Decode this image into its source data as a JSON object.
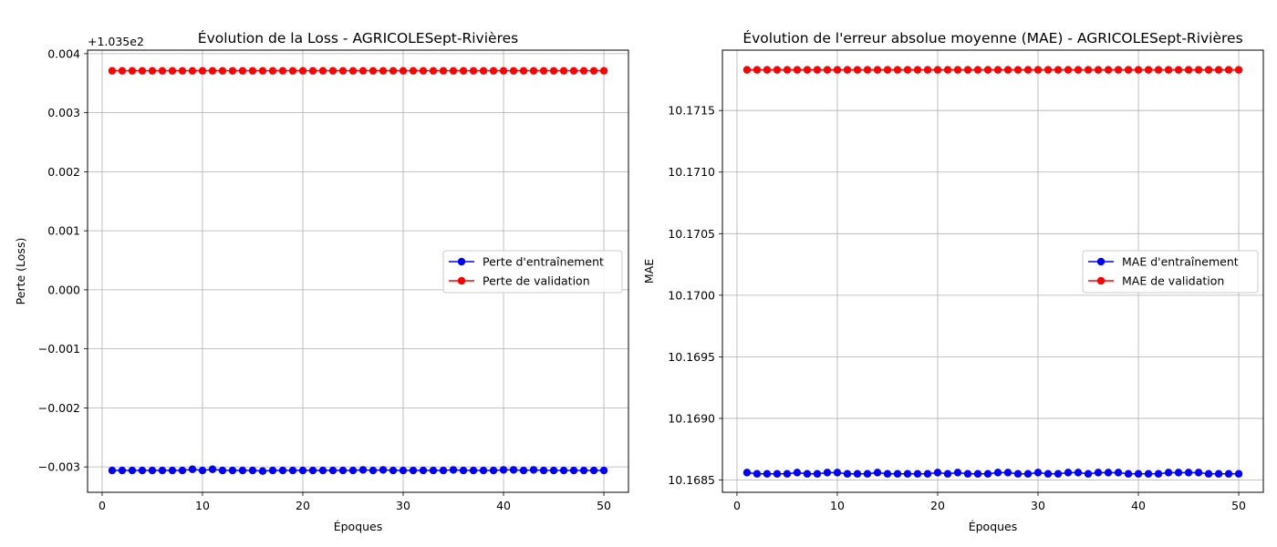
{
  "chart_data": [
    {
      "type": "line",
      "title": "Évolution de la Loss - AGRICOLESept-Rivières",
      "xlabel": "Époques",
      "ylabel": "Perte (Loss)",
      "offset_label": "+1.035e2",
      "x": [
        1,
        2,
        3,
        4,
        5,
        6,
        7,
        8,
        9,
        10,
        11,
        12,
        13,
        14,
        15,
        16,
        17,
        18,
        19,
        20,
        21,
        22,
        23,
        24,
        25,
        26,
        27,
        28,
        29,
        30,
        31,
        32,
        33,
        34,
        35,
        36,
        37,
        38,
        39,
        40,
        41,
        42,
        43,
        44,
        45,
        46,
        47,
        48,
        49,
        50
      ],
      "xlim": [
        -1.45,
        52.45
      ],
      "ylim": [
        -0.00343,
        0.00406
      ],
      "xticks": [
        0,
        10,
        20,
        30,
        40,
        50
      ],
      "xtick_labels": [
        "0",
        "10",
        "20",
        "30",
        "40",
        "50"
      ],
      "yticks": [
        -0.003,
        -0.002,
        -0.001,
        0.0,
        0.001,
        0.002,
        0.003,
        0.004
      ],
      "ytick_labels": [
        "−0.003",
        "−0.002",
        "−0.001",
        "0.000",
        "0.001",
        "0.002",
        "0.003",
        "0.004"
      ],
      "grid": true,
      "legend_position": "center-right",
      "series": [
        {
          "name": "Perte d'entraînement",
          "color": "#0000ff",
          "values": [
            -0.00306,
            -0.00306,
            -0.00306,
            -0.00306,
            -0.00306,
            -0.00306,
            -0.00306,
            -0.00306,
            -0.00304,
            -0.00306,
            -0.00304,
            -0.00306,
            -0.00306,
            -0.00306,
            -0.00306,
            -0.00307,
            -0.00306,
            -0.00306,
            -0.00306,
            -0.00306,
            -0.00306,
            -0.00306,
            -0.00306,
            -0.00306,
            -0.00306,
            -0.00305,
            -0.00306,
            -0.00305,
            -0.00306,
            -0.00306,
            -0.00306,
            -0.00306,
            -0.00306,
            -0.00306,
            -0.00305,
            -0.00306,
            -0.00306,
            -0.00306,
            -0.00306,
            -0.00305,
            -0.00305,
            -0.00306,
            -0.00305,
            -0.00306,
            -0.00306,
            -0.00306,
            -0.00306,
            -0.00306,
            -0.00306,
            -0.00306
          ]
        },
        {
          "name": "Perte de validation",
          "color": "#ff0000",
          "values": [
            0.00371,
            0.00371,
            0.00371,
            0.00371,
            0.00371,
            0.00371,
            0.00371,
            0.00371,
            0.00371,
            0.00371,
            0.00371,
            0.00371,
            0.00371,
            0.00371,
            0.00371,
            0.00371,
            0.00371,
            0.00371,
            0.00371,
            0.00371,
            0.00371,
            0.00371,
            0.00371,
            0.00371,
            0.00371,
            0.00371,
            0.00371,
            0.00371,
            0.00371,
            0.00371,
            0.00371,
            0.00371,
            0.00371,
            0.00371,
            0.00371,
            0.00371,
            0.00371,
            0.00371,
            0.00371,
            0.00371,
            0.00371,
            0.00371,
            0.00371,
            0.00371,
            0.00371,
            0.00371,
            0.00371,
            0.00371,
            0.00371,
            0.00371
          ]
        }
      ]
    },
    {
      "type": "line",
      "title": "Évolution de l'erreur absolue moyenne (MAE) - AGRICOLESept-Rivières",
      "xlabel": "Époques",
      "ylabel": "MAE",
      "x": [
        1,
        2,
        3,
        4,
        5,
        6,
        7,
        8,
        9,
        10,
        11,
        12,
        13,
        14,
        15,
        16,
        17,
        18,
        19,
        20,
        21,
        22,
        23,
        24,
        25,
        26,
        27,
        28,
        29,
        30,
        31,
        32,
        33,
        34,
        35,
        36,
        37,
        38,
        39,
        40,
        41,
        42,
        43,
        44,
        45,
        46,
        47,
        48,
        49,
        50
      ],
      "xlim": [
        -1.45,
        52.45
      ],
      "ylim": [
        10.1684,
        10.17199
      ],
      "xticks": [
        0,
        10,
        20,
        30,
        40,
        50
      ],
      "xtick_labels": [
        "0",
        "10",
        "20",
        "30",
        "40",
        "50"
      ],
      "yticks": [
        10.1685,
        10.169,
        10.1695,
        10.17,
        10.1705,
        10.171,
        10.1715
      ],
      "ytick_labels": [
        "10.1685",
        "10.1690",
        "10.1695",
        "10.1700",
        "10.1705",
        "10.1710",
        "10.1715"
      ],
      "grid": true,
      "legend_position": "center-right",
      "series": [
        {
          "name": "MAE d'entraînement",
          "color": "#0000ff",
          "values": [
            10.16856,
            10.16855,
            10.16855,
            10.16855,
            10.16855,
            10.16856,
            10.16855,
            10.16855,
            10.16856,
            10.16856,
            10.16855,
            10.16855,
            10.16855,
            10.16856,
            10.16855,
            10.16855,
            10.16855,
            10.16855,
            10.16855,
            10.16856,
            10.16855,
            10.16856,
            10.16855,
            10.16855,
            10.16855,
            10.16856,
            10.16856,
            10.16855,
            10.16855,
            10.16856,
            10.16855,
            10.16855,
            10.16856,
            10.16856,
            10.16855,
            10.16856,
            10.16856,
            10.16856,
            10.16855,
            10.16855,
            10.16855,
            10.16855,
            10.16856,
            10.16856,
            10.16856,
            10.16856,
            10.16855,
            10.16855,
            10.16855,
            10.16855
          ]
        },
        {
          "name": "MAE de validation",
          "color": "#ff0000",
          "values": [
            10.17183,
            10.17183,
            10.17183,
            10.17183,
            10.17183,
            10.17183,
            10.17183,
            10.17183,
            10.17183,
            10.17183,
            10.17183,
            10.17183,
            10.17183,
            10.17183,
            10.17183,
            10.17183,
            10.17183,
            10.17183,
            10.17183,
            10.17183,
            10.17183,
            10.17183,
            10.17183,
            10.17183,
            10.17183,
            10.17183,
            10.17183,
            10.17183,
            10.17183,
            10.17183,
            10.17183,
            10.17183,
            10.17183,
            10.17183,
            10.17183,
            10.17183,
            10.17183,
            10.17183,
            10.17183,
            10.17183,
            10.17183,
            10.17183,
            10.17183,
            10.17183,
            10.17183,
            10.17183,
            10.17183,
            10.17183,
            10.17183,
            10.17183
          ]
        }
      ]
    }
  ]
}
